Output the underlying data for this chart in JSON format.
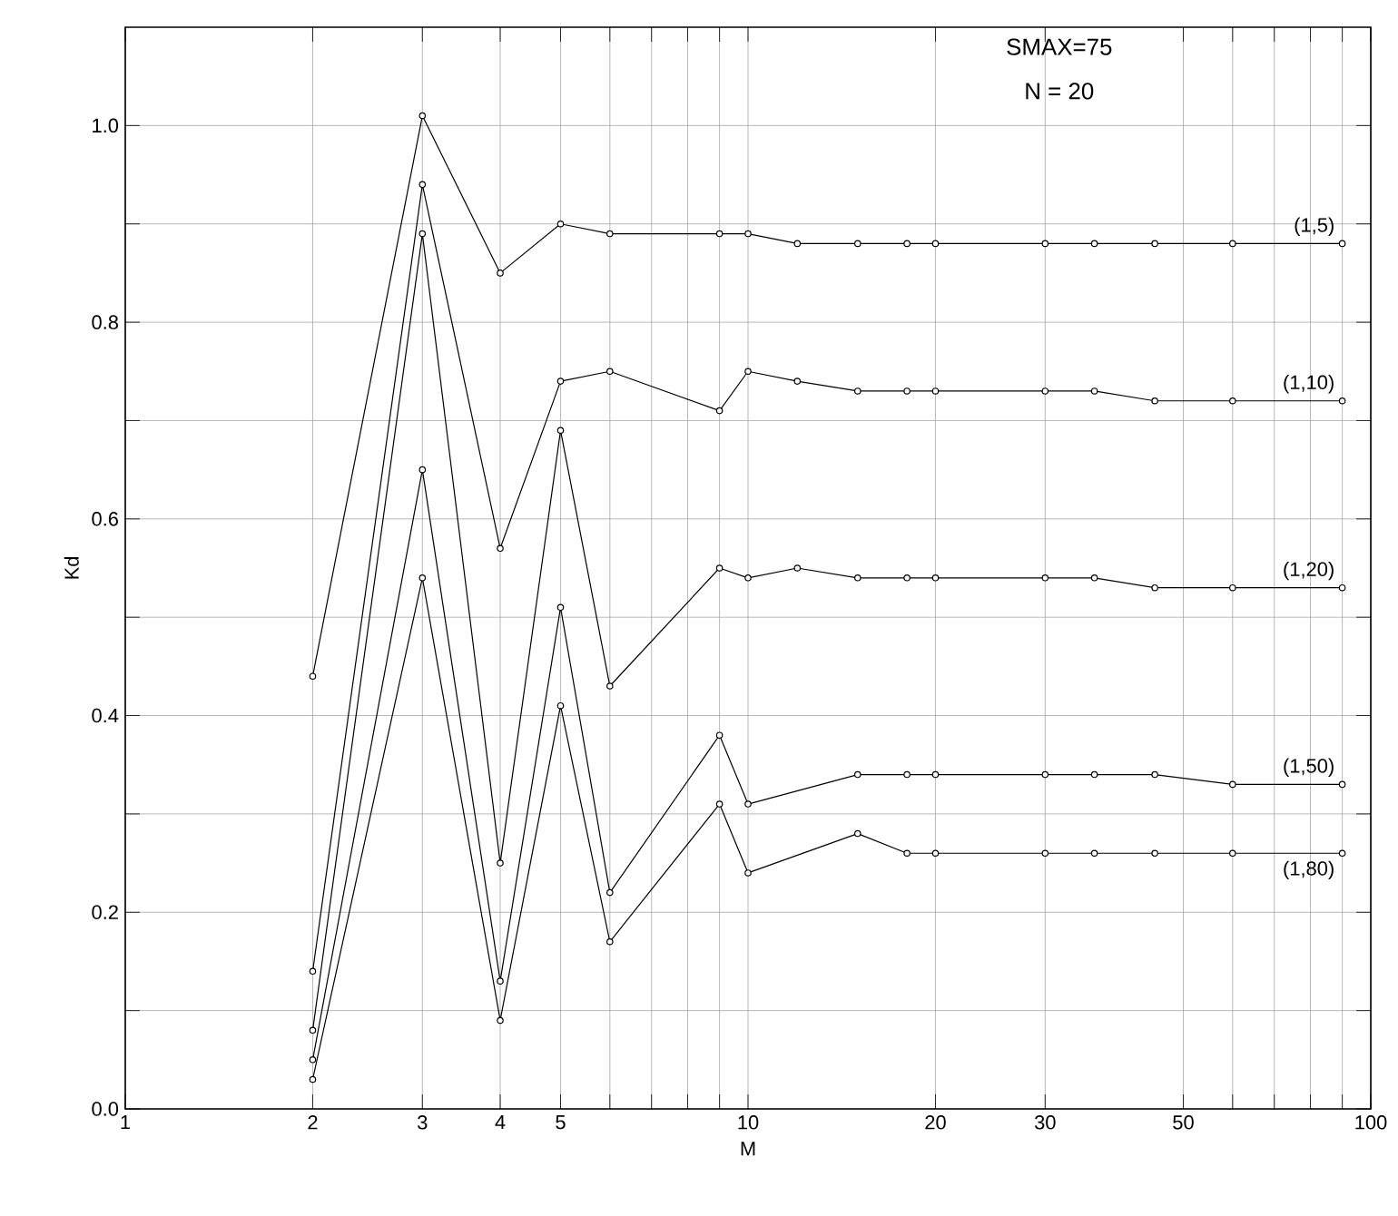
{
  "chart_data": {
    "type": "line",
    "xlabel": "M",
    "ylabel": "Kd",
    "annotations": [
      "SMAX=75",
      "N = 20"
    ],
    "log": "x",
    "xlim": [
      1,
      100
    ],
    "ylim": [
      0,
      1.1
    ],
    "xticks": [
      1,
      2,
      3,
      4,
      5,
      {
        "value": 6,
        "label": null
      },
      {
        "value": 7,
        "label": null
      },
      {
        "value": 8,
        "label": null
      },
      {
        "value": 9,
        "label": null
      },
      10,
      20,
      30,
      50,
      {
        "value": 60,
        "label": null
      },
      {
        "value": 70,
        "label": null
      },
      {
        "value": 80,
        "label": null
      },
      {
        "value": 90,
        "label": null
      },
      100
    ],
    "yticks": [
      {
        "value": 0,
        "label": "0.0"
      },
      {
        "value": 0.1,
        "label": null
      },
      0.2,
      {
        "value": 0.3,
        "label": null
      },
      0.4,
      {
        "value": 0.5,
        "label": null
      },
      0.6,
      {
        "value": 0.7,
        "label": null
      },
      0.8,
      {
        "value": 0.9,
        "label": null
      },
      {
        "value": 1,
        "label": "1.0"
      }
    ],
    "grid": true,
    "marker": "circle",
    "line_style": "solid",
    "x": [
      2,
      3,
      4,
      5,
      6,
      9,
      10,
      12,
      15,
      18,
      20,
      30,
      36,
      45,
      60,
      90
    ],
    "series": [
      {
        "name": "(1,5)",
        "color": "#000000",
        "values": [
          0.44,
          1.01,
          0.85,
          0.9,
          0.89,
          0.89,
          0.89,
          0.88,
          0.88,
          0.88,
          0.88,
          0.88,
          0.88,
          0.88,
          0.88,
          0.88
        ]
      },
      {
        "name": "(1,10)",
        "color": "#000000",
        "values": [
          0.14,
          0.94,
          0.57,
          0.74,
          0.75,
          0.71,
          0.75,
          0.74,
          0.73,
          0.73,
          0.73,
          0.73,
          0.73,
          0.72,
          0.72,
          0.72
        ]
      },
      {
        "name": "(1,20)",
        "color": "#000000",
        "values": [
          0.08,
          0.89,
          0.25,
          0.69,
          0.43,
          0.55,
          0.54,
          0.55,
          0.54,
          0.54,
          0.54,
          0.54,
          0.54,
          0.53,
          0.53,
          0.53
        ]
      },
      {
        "name": "(1,50)",
        "color": "#000000",
        "values": [
          0.05,
          0.65,
          0.13,
          0.51,
          0.22,
          0.38,
          0.31,
          null,
          0.34,
          0.34,
          0.34,
          0.34,
          0.34,
          0.34,
          0.33,
          0.33
        ]
      },
      {
        "name": "(1,80)",
        "color": "#000000",
        "values": [
          0.03,
          0.54,
          0.09,
          0.41,
          0.17,
          0.31,
          0.24,
          null,
          0.28,
          0.26,
          0.26,
          0.26,
          0.26,
          0.26,
          0.26,
          0.26
        ]
      }
    ]
  }
}
